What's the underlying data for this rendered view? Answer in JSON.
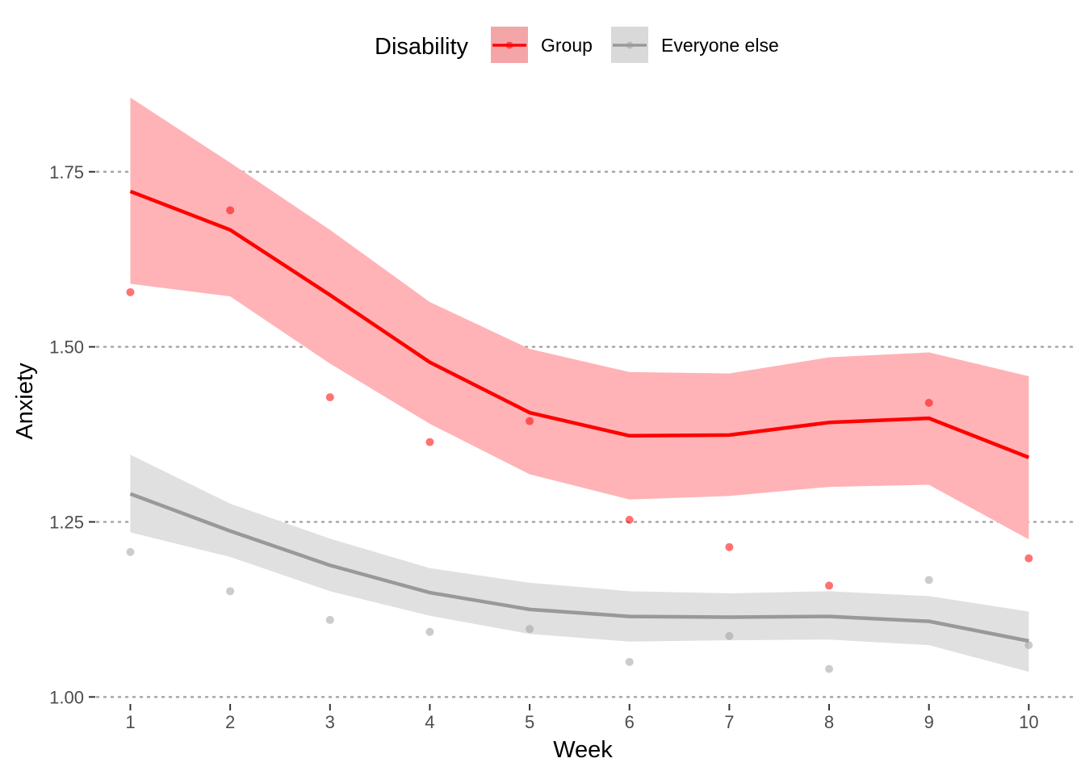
{
  "chart_data": {
    "type": "line",
    "xlabel": "Week",
    "ylabel": "Anxiety",
    "x": [
      1,
      2,
      3,
      4,
      5,
      6,
      7,
      8,
      9,
      10
    ],
    "xlim": [
      0.6,
      10.45
    ],
    "ylim": [
      0.99,
      1.88
    ],
    "yticks": [
      1.0,
      1.25,
      1.5,
      1.75
    ],
    "ytick_labels": [
      "1.00",
      "1.25",
      "1.50",
      "1.75"
    ],
    "xtick_labels": [
      "1",
      "2",
      "3",
      "4",
      "5",
      "6",
      "7",
      "8",
      "9",
      "10"
    ],
    "grid": "horizontal dotted at y ticks",
    "legend": {
      "title": "Disability",
      "placement": "top",
      "entries": [
        "Group",
        "Everyone else"
      ]
    },
    "series": [
      {
        "name": "Group",
        "color": "#ff0000",
        "band_color": "#ffb3b6",
        "fit": [
          1.722,
          1.667,
          1.574,
          1.478,
          1.406,
          1.373,
          1.374,
          1.392,
          1.398,
          1.342
        ],
        "lower": [
          1.59,
          1.572,
          1.476,
          1.39,
          1.318,
          1.282,
          1.287,
          1.3,
          1.303,
          1.225
        ],
        "upper": [
          1.856,
          1.763,
          1.667,
          1.564,
          1.497,
          1.464,
          1.462,
          1.485,
          1.492,
          1.458
        ],
        "points": [
          1.578,
          1.695,
          1.428,
          1.364,
          1.394,
          1.253,
          1.214,
          1.159,
          1.42,
          1.198
        ]
      },
      {
        "name": "Everyone else",
        "color": "#999999",
        "band_color": "#e0e0e0",
        "fit": [
          1.29,
          1.237,
          1.188,
          1.149,
          1.125,
          1.115,
          1.114,
          1.115,
          1.108,
          1.08
        ],
        "lower": [
          1.235,
          1.2,
          1.151,
          1.116,
          1.09,
          1.079,
          1.081,
          1.082,
          1.074,
          1.036
        ],
        "upper": [
          1.346,
          1.276,
          1.226,
          1.184,
          1.163,
          1.151,
          1.148,
          1.151,
          1.144,
          1.122
        ],
        "points": [
          1.207,
          1.151,
          1.11,
          1.093,
          1.097,
          1.05,
          1.087,
          1.04,
          1.167,
          1.074
        ]
      }
    ]
  }
}
